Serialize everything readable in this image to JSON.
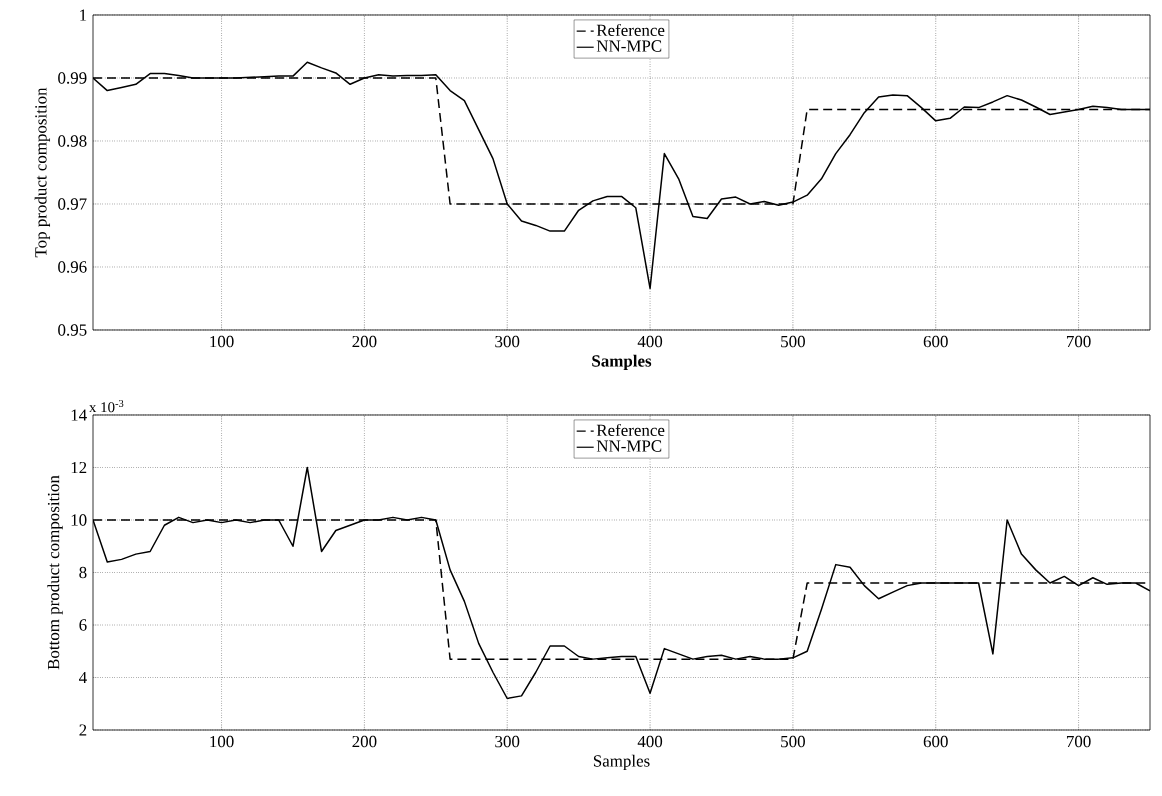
{
  "chart_data": [
    {
      "type": "line",
      "xlabel": "Samples",
      "ylabel": "Top product composition",
      "x": [
        10,
        20,
        30,
        40,
        50,
        60,
        70,
        80,
        90,
        100,
        110,
        120,
        130,
        140,
        150,
        160,
        170,
        180,
        190,
        200,
        210,
        220,
        230,
        240,
        250,
        260,
        270,
        280,
        290,
        300,
        310,
        320,
        330,
        340,
        350,
        360,
        370,
        380,
        390,
        400,
        410,
        420,
        430,
        440,
        450,
        460,
        470,
        480,
        490,
        500,
        510,
        520,
        530,
        540,
        550,
        560,
        570,
        580,
        590,
        600,
        610,
        620,
        630,
        640,
        650,
        660,
        670,
        680,
        690,
        700,
        710,
        720,
        730,
        740,
        750
      ],
      "series": [
        {
          "name": "Reference",
          "color": "#000000",
          "line_style": "dashed",
          "x": [
            10,
            250,
            260,
            500,
            510,
            750
          ],
          "values": [
            0.99,
            0.99,
            0.97,
            0.97,
            0.985,
            0.985
          ]
        },
        {
          "name": "NN-MPC",
          "color": "#000000",
          "line_style": "solid",
          "values": [
            0.99,
            0.988,
            0.9885,
            0.989,
            0.9907,
            0.9907,
            0.9904,
            0.99,
            0.99,
            0.99,
            0.99,
            0.9901,
            0.9902,
            0.9903,
            0.9903,
            0.9925,
            0.9916,
            0.9908,
            0.989,
            0.99,
            0.9905,
            0.9903,
            0.9904,
            0.9904,
            0.9905,
            0.988,
            0.9864,
            0.9818,
            0.9772,
            0.97,
            0.9673,
            0.9666,
            0.9657,
            0.9657,
            0.969,
            0.9705,
            0.9712,
            0.9712,
            0.9694,
            0.9566,
            0.978,
            0.974,
            0.968,
            0.9677,
            0.9708,
            0.9711,
            0.97,
            0.9704,
            0.9698,
            0.9703,
            0.9714,
            0.974,
            0.978,
            0.981,
            0.9845,
            0.987,
            0.9873,
            0.9872,
            0.9853,
            0.9832,
            0.9836,
            0.9854,
            0.9853,
            0.9862,
            0.9872,
            0.9865,
            0.9854,
            0.9842,
            0.9846,
            0.985,
            0.9855,
            0.9853,
            0.985,
            0.985,
            0.985
          ]
        }
      ],
      "xlim": [
        10,
        750
      ],
      "ylim": [
        0.95,
        1
      ],
      "xticks": [
        100,
        200,
        300,
        400,
        500,
        600,
        700
      ],
      "yticks": [
        0.95,
        0.96,
        0.97,
        0.98,
        0.99,
        1
      ],
      "grid": true,
      "legend": "top"
    },
    {
      "type": "line",
      "xlabel": "Samples",
      "ylabel": "Bottom product composition",
      "annotations": [
        "x 10$^{-3}$"
      ],
      "x": [
        10,
        20,
        30,
        40,
        50,
        60,
        70,
        80,
        90,
        100,
        110,
        120,
        130,
        140,
        150,
        160,
        170,
        180,
        190,
        200,
        210,
        220,
        230,
        240,
        250,
        260,
        270,
        280,
        290,
        300,
        310,
        320,
        330,
        340,
        350,
        360,
        370,
        380,
        390,
        400,
        410,
        420,
        430,
        440,
        450,
        460,
        470,
        480,
        490,
        500,
        510,
        520,
        530,
        540,
        550,
        560,
        570,
        580,
        590,
        600,
        610,
        620,
        630,
        640,
        650,
        660,
        670,
        680,
        690,
        700,
        710,
        720,
        730,
        740,
        750
      ],
      "series": [
        {
          "name": "Reference",
          "color": "#000000",
          "line_style": "dashed",
          "x": [
            10,
            250,
            260,
            500,
            510,
            750
          ],
          "values": [
            10,
            10,
            4.7,
            4.7,
            7.6,
            7.6
          ]
        },
        {
          "name": "NN-MPC",
          "color": "#000000",
          "line_style": "solid",
          "values": [
            10,
            8.4,
            8.5,
            8.7,
            8.8,
            9.8,
            10.1,
            9.9,
            10,
            9.9,
            10,
            9.9,
            10,
            10,
            9.0,
            12.0,
            8.8,
            9.6,
            9.8,
            10,
            10,
            10.1,
            10,
            10.1,
            10,
            8.1,
            6.9,
            5.3,
            4.2,
            3.2,
            3.3,
            4.2,
            5.2,
            5.2,
            4.8,
            4.7,
            4.75,
            4.8,
            4.8,
            3.4,
            5.1,
            4.9,
            4.7,
            4.8,
            4.85,
            4.7,
            4.8,
            4.7,
            4.7,
            4.75,
            5.0,
            6.6,
            8.3,
            8.2,
            7.5,
            7.0,
            7.25,
            7.5,
            7.6,
            7.6,
            7.6,
            7.6,
            7.6,
            4.9,
            10.0,
            8.7,
            8.1,
            7.6,
            7.85,
            7.5,
            7.8,
            7.55,
            7.6,
            7.6,
            7.3
          ]
        }
      ],
      "xlim": [
        10,
        750
      ],
      "ylim": [
        2,
        14
      ],
      "xticks": [
        100,
        200,
        300,
        400,
        500,
        600,
        700
      ],
      "yticks": [
        2,
        4,
        6,
        8,
        10,
        12,
        14
      ],
      "grid": true,
      "legend": "top"
    }
  ]
}
